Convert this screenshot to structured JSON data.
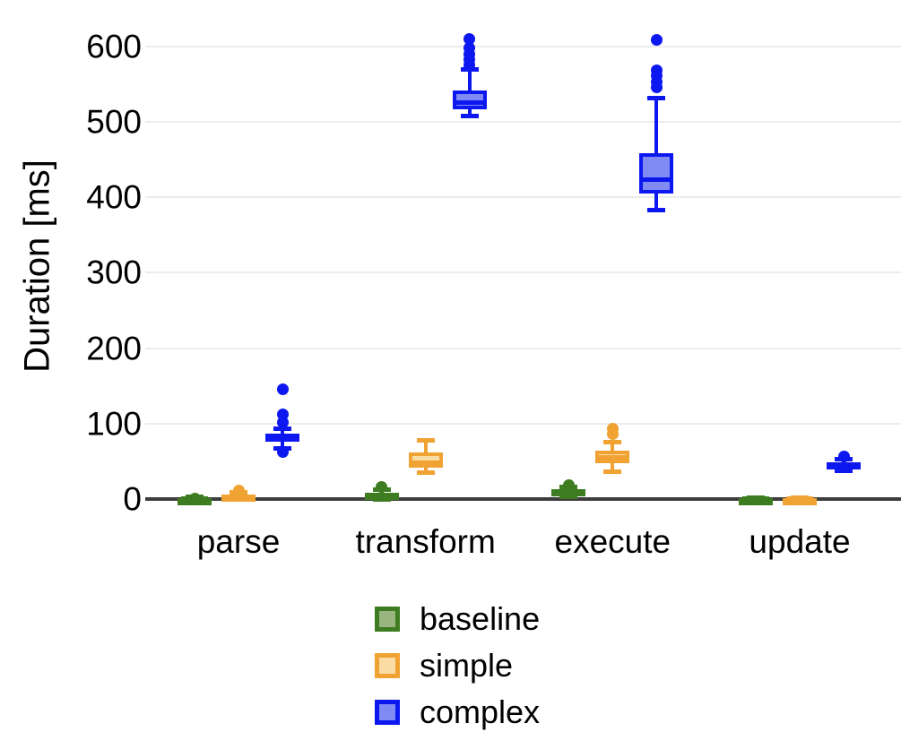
{
  "figure": {
    "background": "#ffffff",
    "grid_color": "#ececec",
    "axis_color": "#3d3d3d",
    "text_color": "#000000"
  },
  "chart_data": {
    "type": "boxplot",
    "title": "",
    "xlabel": "",
    "ylabel": "Duration [ms]",
    "categories": [
      "parse",
      "transform",
      "execute",
      "update"
    ],
    "yticks": [
      0,
      100,
      200,
      300,
      400,
      500,
      600
    ],
    "ylim": [
      0,
      620
    ],
    "grid": "horizontal-only",
    "legend_position": "bottom-center",
    "legend": [
      "baseline",
      "simple",
      "complex"
    ],
    "series": [
      {
        "name": "baseline",
        "stroke": "#3e7c21",
        "fill": "#9bb580",
        "boxes": [
          {
            "category": "parse",
            "whislo": 0,
            "q1": 0.5,
            "med": 1,
            "q3": 2,
            "whishi": 3,
            "outliers": [
              1
            ]
          },
          {
            "category": "transform",
            "whislo": 0,
            "q1": 3,
            "med": 5.5,
            "q3": 9,
            "whishi": 13,
            "outliers": [
              16
            ]
          },
          {
            "category": "execute",
            "whislo": 3,
            "q1": 7,
            "med": 10,
            "q3": 13,
            "whishi": 16,
            "outliers": [
              19
            ]
          },
          {
            "category": "update",
            "whislo": 0,
            "q1": 0.3,
            "med": 0.8,
            "q3": 1.3,
            "whishi": 2,
            "outliers": []
          }
        ]
      },
      {
        "name": "simple",
        "stroke": "#f0a232",
        "fill": "#fbdca4",
        "boxes": [
          {
            "category": "parse",
            "whislo": 0,
            "q1": 1,
            "med": 3,
            "q3": 6,
            "whishi": 9,
            "outliers": [
              12
            ]
          },
          {
            "category": "transform",
            "whislo": 35,
            "q1": 42,
            "med": 48,
            "q3": 62,
            "whishi": 78,
            "outliers": []
          },
          {
            "category": "execute",
            "whislo": 37,
            "q1": 48,
            "med": 55,
            "q3": 64,
            "whishi": 76,
            "outliers": [
              86,
              94
            ]
          },
          {
            "category": "update",
            "whislo": 0,
            "q1": 0.3,
            "med": 0.8,
            "q3": 1.3,
            "whishi": 2,
            "outliers": []
          }
        ]
      },
      {
        "name": "complex",
        "stroke": "#0d18f0",
        "fill": "#7f8bf2",
        "boxes": [
          {
            "category": "parse",
            "whislo": 67,
            "q1": 76,
            "med": 82,
            "q3": 87,
            "whishi": 93,
            "outliers": [
              63,
              102,
              112,
              146
            ]
          },
          {
            "category": "transform",
            "whislo": 508,
            "q1": 517,
            "med": 525,
            "q3": 542,
            "whishi": 569,
            "outliers": [
              575,
              583,
              590,
              598,
              610
            ]
          },
          {
            "category": "execute",
            "whislo": 383,
            "q1": 405,
            "med": 424,
            "q3": 458,
            "whishi": 531,
            "outliers": [
              546,
              553,
              561,
              568,
              609
            ]
          },
          {
            "category": "update",
            "whislo": 38,
            "q1": 42,
            "med": 45,
            "q3": 49,
            "whishi": 53,
            "outliers": [
              57
            ]
          }
        ]
      }
    ]
  }
}
